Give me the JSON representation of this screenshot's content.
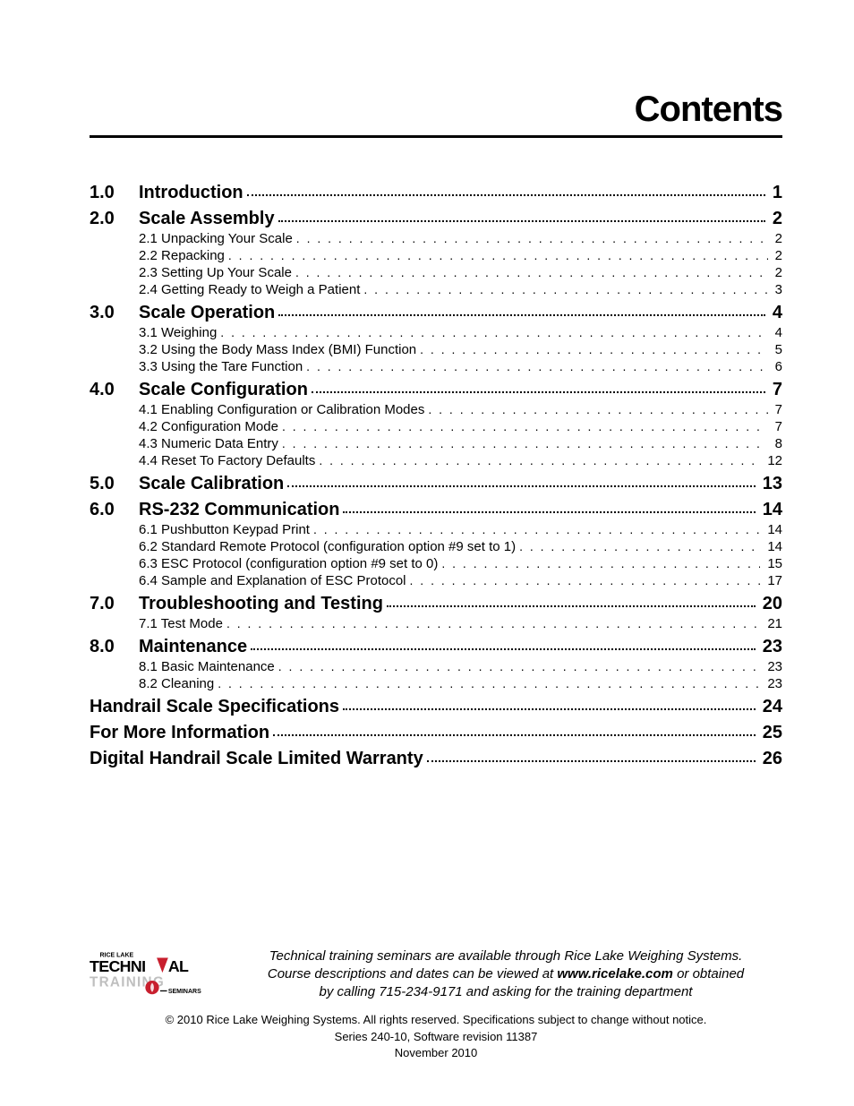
{
  "title": "Contents",
  "toc": [
    {
      "num": "1.0",
      "label": "Introduction",
      "page": "1",
      "subs": []
    },
    {
      "num": "2.0",
      "label": "Scale Assembly",
      "page": "2",
      "subs": [
        {
          "label": "2.1 Unpacking Your Scale",
          "page": "2"
        },
        {
          "label": "2.2 Repacking",
          "page": "2"
        },
        {
          "label": "2.3 Setting Up Your Scale",
          "page": "2"
        },
        {
          "label": "2.4 Getting Ready to Weigh a Patient",
          "page": "3"
        }
      ]
    },
    {
      "num": "3.0",
      "label": "Scale Operation",
      "page": "4",
      "subs": [
        {
          "label": "3.1 Weighing",
          "page": "4"
        },
        {
          "label": "3.2 Using the Body Mass Index (BMI) Function",
          "page": "5"
        },
        {
          "label": "3.3 Using the Tare Function",
          "page": "6"
        }
      ]
    },
    {
      "num": "4.0",
      "label": "Scale Configuration",
      "page": "7",
      "subs": [
        {
          "label": "4.1 Enabling Configuration or Calibration Modes",
          "page": "7"
        },
        {
          "label": "4.2 Configuration Mode",
          "page": "7"
        },
        {
          "label": "4.3 Numeric Data Entry",
          "page": "8"
        },
        {
          "label": "4.4 Reset To Factory Defaults",
          "page": "12"
        }
      ]
    },
    {
      "num": "5.0",
      "label": "Scale Calibration",
      "page": "13",
      "subs": []
    },
    {
      "num": "6.0",
      "label": "RS-232 Communication",
      "page": "14",
      "subs": [
        {
          "label": "6.1 Pushbutton Keypad Print",
          "page": "14"
        },
        {
          "label": "6.2 Standard Remote Protocol (configuration option #9 set to 1)",
          "page": "14"
        },
        {
          "label": "6.3 ESC Protocol (configuration option #9 set to 0)",
          "page": "15"
        },
        {
          "label": "6.4 Sample and Explanation of ESC Protocol",
          "page": "17"
        }
      ]
    },
    {
      "num": "7.0",
      "label": "Troubleshooting and Testing",
      "page": "20",
      "subs": [
        {
          "label": "7.1 Test Mode",
          "page": "21"
        }
      ]
    },
    {
      "num": "8.0",
      "label": "Maintenance",
      "page": "23",
      "subs": [
        {
          "label": "8.1 Basic Maintenance",
          "page": "23"
        },
        {
          "label": "8.2 Cleaning",
          "page": "23"
        }
      ]
    },
    {
      "num": "",
      "label": "Handrail Scale Specifications",
      "page": "24",
      "subs": []
    },
    {
      "num": "",
      "label": "For More Information",
      "page": "25",
      "subs": []
    },
    {
      "num": "",
      "label": "Digital Handrail Scale Limited Warranty",
      "page": "26",
      "subs": []
    }
  ],
  "logo": {
    "top_text": "RICE LAKE",
    "main_text_1": "TECHNI",
    "main_text_2": "AL",
    "sub_text": "TRAINING",
    "small_text": "SEMINARS",
    "accent_color": "#c81f2e",
    "gray_color": "#bfbfbf",
    "black_color": "#000000"
  },
  "seminar": {
    "line1": "Technical training seminars are available through Rice Lake Weighing Systems.",
    "line2a": "Course descriptions and dates can be viewed at ",
    "url": "www.ricelake.com",
    "line2b": " or obtained",
    "line3": "by calling 715-234-9171 and asking for the training department"
  },
  "copyright": {
    "line1": "© 2010 Rice Lake Weighing Systems. All rights reserved. Specifications subject to change without notice.",
    "line2": "Series  240-10, Software revision 11387",
    "line3": "November 2010"
  }
}
